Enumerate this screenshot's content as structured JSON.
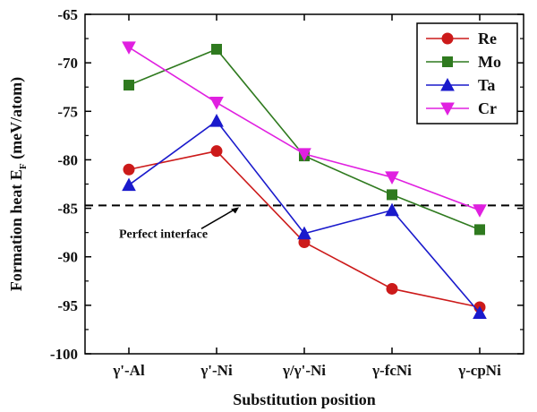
{
  "chart_data": {
    "type": "line",
    "title": "",
    "xlabel": "Substitution position",
    "ylabel_main": "Formation heat E",
    "ylabel_sub": "F",
    "ylabel_unit": " (meV/atom)",
    "categories": [
      "γ'-Al",
      "γ'-Ni",
      "γ/γ'-Ni",
      "γ-fcNi",
      "γ-cpNi"
    ],
    "ylim": [
      -100,
      -65
    ],
    "yticks": [
      -100,
      -95,
      -90,
      -85,
      -80,
      -75,
      -70,
      -65
    ],
    "grid": false,
    "legend_position": "top-right",
    "series": [
      {
        "name": "Re",
        "color": "#cc1a1a",
        "marker": "circle",
        "values": [
          -81.0,
          -79.1,
          -88.5,
          -93.3,
          -95.2
        ]
      },
      {
        "name": "Mo",
        "color": "#2f7a1f",
        "marker": "square",
        "values": [
          -72.3,
          -68.6,
          -79.6,
          -83.6,
          -87.2
        ]
      },
      {
        "name": "Ta",
        "color": "#1a1acc",
        "marker": "triangle-up",
        "values": [
          -82.6,
          -76.0,
          -87.6,
          -85.2,
          -95.8
        ]
      },
      {
        "name": "Cr",
        "color": "#e020e0",
        "marker": "triangle-down",
        "values": [
          -68.4,
          -74.1,
          -79.4,
          -81.8,
          -85.2
        ]
      }
    ],
    "reference_line": {
      "value": -84.7,
      "style": "dashed",
      "color": "#000000"
    },
    "annotation": {
      "text": "Perfect interface"
    }
  }
}
